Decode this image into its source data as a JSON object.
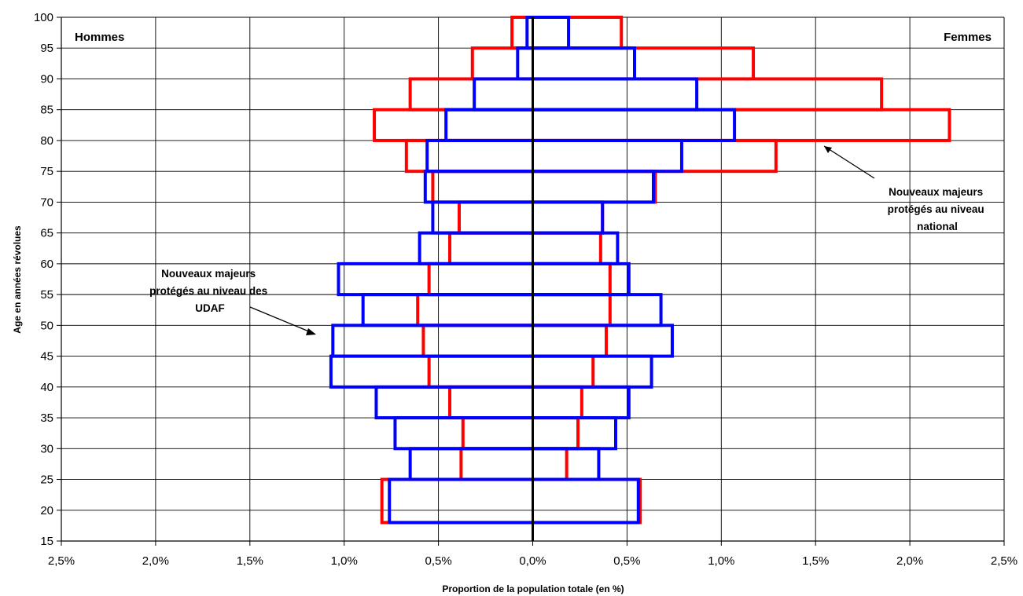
{
  "chart_data": {
    "type": "bar",
    "subtype": "population-pyramid",
    "xlabel": "Proportion de la population totale (en %)",
    "ylabel": "Age en années révolues",
    "xlim": [
      -2.5,
      2.5
    ],
    "ylim": [
      15,
      100
    ],
    "x_ticks": [
      -2.5,
      -2.0,
      -1.5,
      -1.0,
      -0.5,
      0.0,
      0.5,
      1.0,
      1.5,
      2.0,
      2.5
    ],
    "x_tick_labels": [
      "2,5%",
      "2,0%",
      "1,5%",
      "1,0%",
      "0,5%",
      "0,0%",
      "0,5%",
      "1,0%",
      "1,5%",
      "2,0%",
      "2,5%"
    ],
    "y_ticks": [
      15,
      20,
      25,
      30,
      35,
      40,
      45,
      50,
      55,
      60,
      65,
      70,
      75,
      80,
      85,
      90,
      95,
      100
    ],
    "grid": true,
    "left_label": "Hommes",
    "right_label": "Femmes",
    "age_bands": [
      [
        18,
        25
      ],
      [
        25,
        30
      ],
      [
        30,
        35
      ],
      [
        35,
        40
      ],
      [
        40,
        45
      ],
      [
        45,
        50
      ],
      [
        50,
        55
      ],
      [
        55,
        60
      ],
      [
        60,
        65
      ],
      [
        65,
        70
      ],
      [
        70,
        75
      ],
      [
        75,
        80
      ],
      [
        80,
        85
      ],
      [
        85,
        90
      ],
      [
        90,
        95
      ],
      [
        95,
        100
      ]
    ],
    "series": [
      {
        "color": "#ff0000",
        "men": [
          0.8,
          0.38,
          0.37,
          0.44,
          0.55,
          0.58,
          0.61,
          0.55,
          0.44,
          0.39,
          0.53,
          0.67,
          0.84,
          0.65,
          0.32,
          0.11
        ],
        "women": [
          0.57,
          0.18,
          0.24,
          0.26,
          0.32,
          0.39,
          0.41,
          0.41,
          0.36,
          0.37,
          0.65,
          1.29,
          2.21,
          1.85,
          1.17,
          0.47
        ]
      },
      {
        "color": "#0000ff",
        "men": [
          0.76,
          0.65,
          0.73,
          0.83,
          1.07,
          1.06,
          0.9,
          1.03,
          0.6,
          0.53,
          0.57,
          0.56,
          0.46,
          0.31,
          0.08,
          0.03
        ],
        "women": [
          0.56,
          0.35,
          0.44,
          0.51,
          0.63,
          0.74,
          0.68,
          0.51,
          0.45,
          0.37,
          0.64,
          0.79,
          1.07,
          0.87,
          0.54,
          0.19
        ]
      }
    ],
    "annotations": [
      {
        "lines": [
          "Nouveaux majeurs",
          "protégés au niveau",
          "national"
        ]
      },
      {
        "lines": [
          "Nouveaux majeurs",
          "protégés au niveau des",
          "UDAF"
        ]
      }
    ]
  }
}
